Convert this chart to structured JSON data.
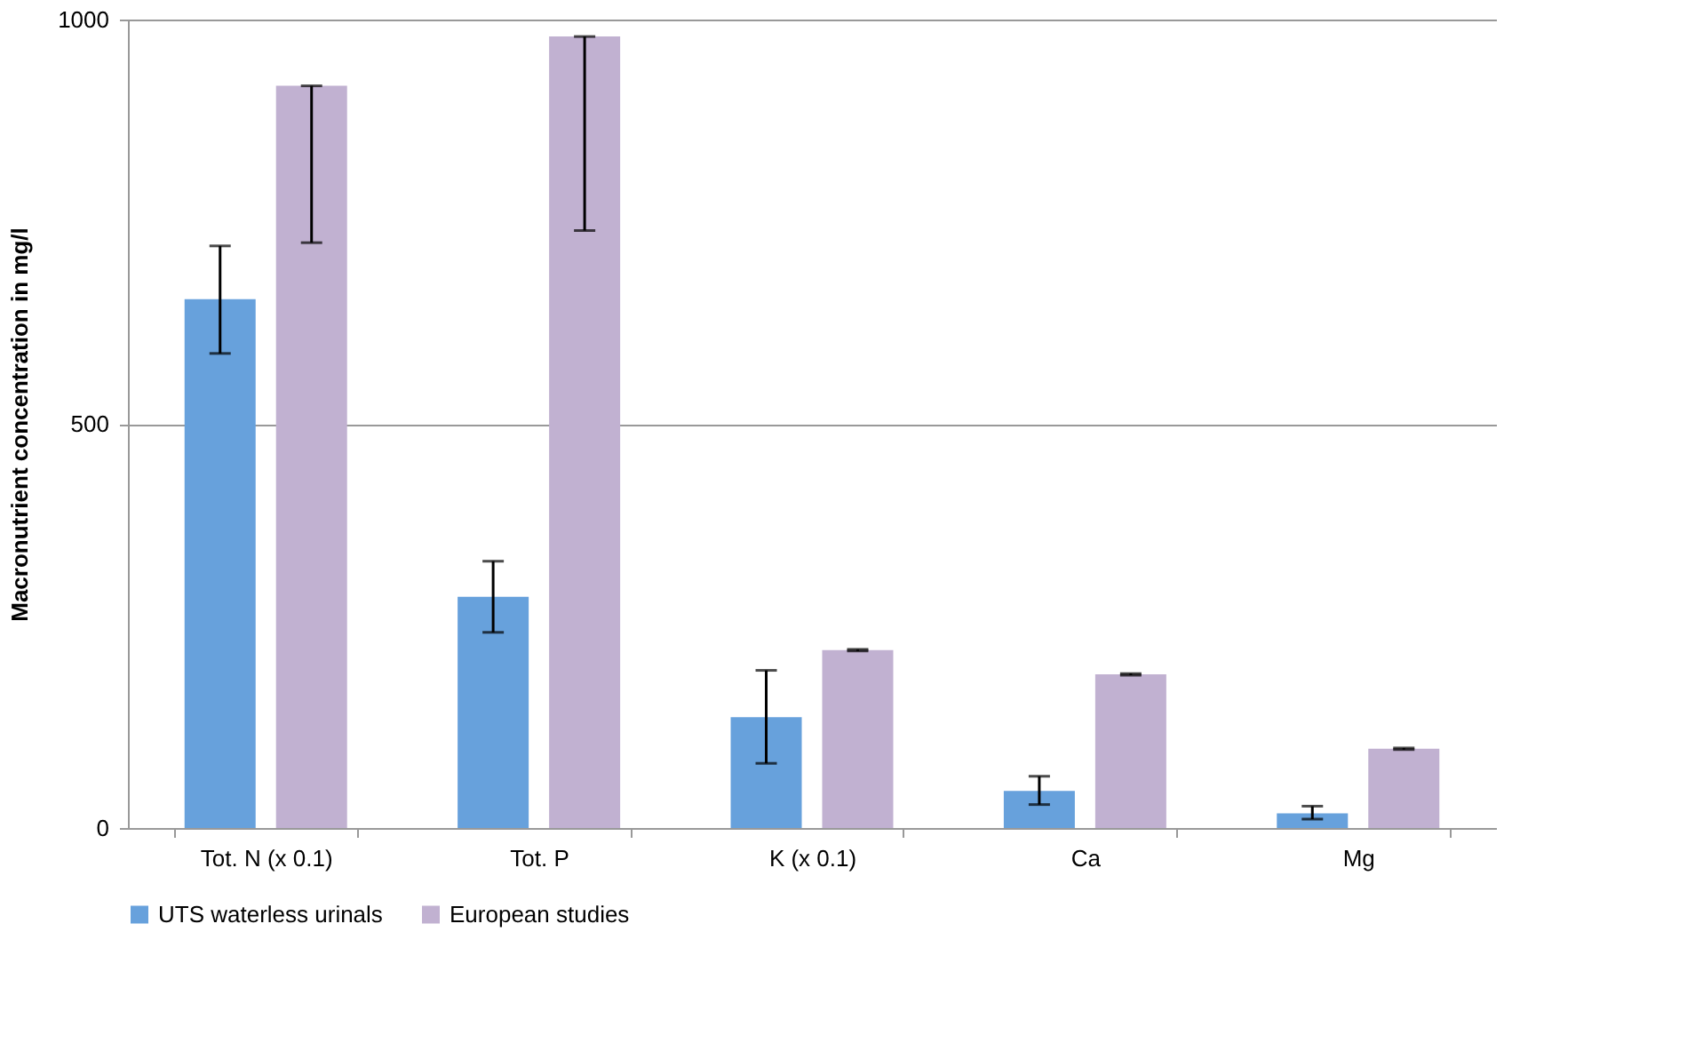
{
  "chart_data": {
    "type": "bar",
    "ylabel": "Macronutrient concentration in mg/l",
    "categories": [
      "Tot. N (x 0.1)",
      "Tot. P",
      "K (x 0.1)",
      "Ca",
      "Mg"
    ],
    "series": [
      {
        "name": "UTS waterless urinals",
        "color": "#67a1dc",
        "values": [
          654,
          286,
          137,
          46,
          18
        ],
        "errors": [
          [
            587,
            720
          ],
          [
            242,
            330
          ],
          [
            80,
            195
          ],
          [
            29,
            64
          ],
          [
            11,
            27
          ]
        ]
      },
      {
        "name": "European studies",
        "color": "#c1b1d1",
        "values": [
          918,
          979,
          220,
          190,
          98
        ],
        "errors": [
          [
            724,
            918
          ],
          [
            739,
            979
          ],
          [
            219,
            221
          ],
          [
            189,
            191
          ],
          [
            97,
            99
          ]
        ]
      }
    ],
    "ylim": [
      0,
      1000
    ],
    "yticks": [
      0,
      500,
      1000
    ],
    "grid": "y",
    "legend": "bottom"
  }
}
